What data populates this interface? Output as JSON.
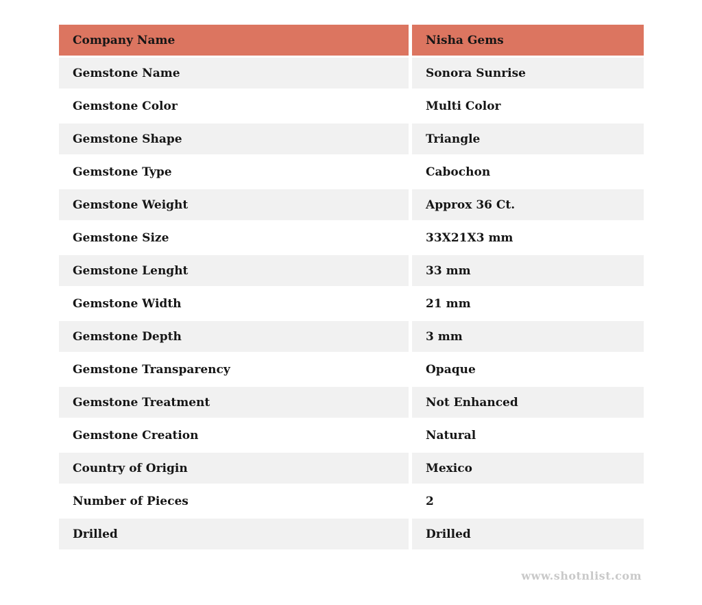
{
  "table": {
    "header": {
      "label": "Company Name",
      "value": "Nisha Gems"
    },
    "rows": [
      {
        "label": "Gemstone Name",
        "value": "Sonora Sunrise"
      },
      {
        "label": "Gemstone Color",
        "value": "Multi Color"
      },
      {
        "label": "Gemstone Shape",
        "value": "Triangle"
      },
      {
        "label": "Gemstone Type",
        "value": "Cabochon"
      },
      {
        "label": "Gemstone Weight",
        "value": "Approx 36 Ct."
      },
      {
        "label": "Gemstone Size",
        "value": "33X21X3 mm"
      },
      {
        "label": "Gemstone Lenght",
        "value": "33 mm"
      },
      {
        "label": "Gemstone Width",
        "value": "21 mm"
      },
      {
        "label": "Gemstone Depth",
        "value": "3 mm"
      },
      {
        "label": "Gemstone Transparency",
        "value": "Opaque"
      },
      {
        "label": "Gemstone Treatment",
        "value": "Not Enhanced"
      },
      {
        "label": "Gemstone Creation",
        "value": "Natural"
      },
      {
        "label": "Country of Origin",
        "value": "Mexico"
      },
      {
        "label": "Number of Pieces",
        "value": "2"
      },
      {
        "label": "Drilled",
        "value": "Drilled"
      }
    ]
  },
  "footer": {
    "watermark": "www.shotnlist.com"
  },
  "colors": {
    "page_bg": "#ffffff",
    "header_bg": "#dc7560",
    "row_bg": "#ffffff",
    "row_alt_bg": "#f1f1f1",
    "text": "#161616",
    "watermark": "#c9c9c9"
  }
}
